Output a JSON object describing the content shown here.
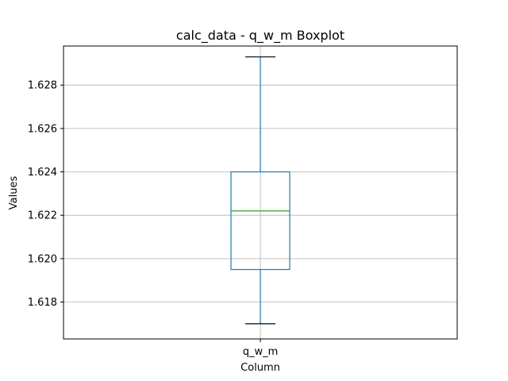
{
  "chart_data": {
    "type": "boxplot",
    "title": "calc_data - q_w_m Boxplot",
    "xlabel": "Column",
    "ylabel": "Values",
    "categories": [
      "q_w_m"
    ],
    "boxes": [
      {
        "category": "q_w_m",
        "whisker_low": 1.617,
        "q1": 1.6195,
        "median": 1.6222,
        "q3": 1.624,
        "whisker_high": 1.6293
      }
    ],
    "ylim": [
      1.6163,
      1.6298
    ],
    "yticks": [
      1.618,
      1.62,
      1.622,
      1.624,
      1.626,
      1.628
    ],
    "ytick_labels": [
      "1.618",
      "1.620",
      "1.622",
      "1.624",
      "1.626",
      "1.628"
    ],
    "grid": true,
    "colors": {
      "box": "#1f77b4",
      "median": "#2ca02c",
      "whisker_cap": "#000000",
      "grid": "#b0b0b0"
    }
  }
}
